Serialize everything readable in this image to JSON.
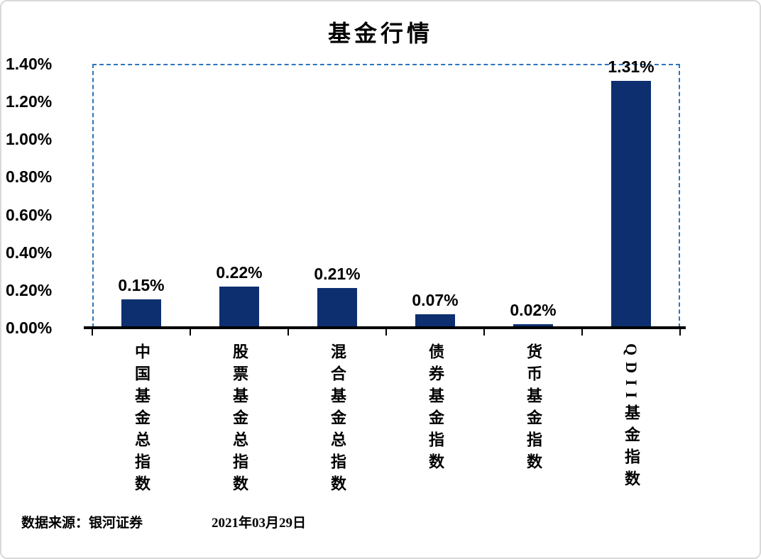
{
  "chart_data": {
    "type": "bar",
    "title": "基金行情",
    "categories": [
      "中国基金总指数",
      "股票基金总指数",
      "混合基金总指数",
      "债券基金指数",
      "货币基金指数",
      "QDII基金指数"
    ],
    "values": [
      0.15,
      0.22,
      0.21,
      0.07,
      0.02,
      1.31
    ],
    "value_labels": [
      "0.15%",
      "0.22%",
      "0.21%",
      "0.07%",
      "0.02%",
      "1.31%"
    ],
    "xlabel": "",
    "ylabel": "",
    "ylim": [
      0,
      1.4
    ],
    "ytick_step": 0.2,
    "ytick_labels": [
      "0.00%",
      "0.20%",
      "0.40%",
      "0.60%",
      "0.80%",
      "1.00%",
      "1.20%",
      "1.40%"
    ],
    "grid": false,
    "legend": "none",
    "bar_color": "#0d2f70",
    "plot_border_color": "#2e75b6",
    "axis_color": "#000000"
  },
  "footer": {
    "source": "数据来源：银河证券",
    "date": "2021年03月29日"
  }
}
